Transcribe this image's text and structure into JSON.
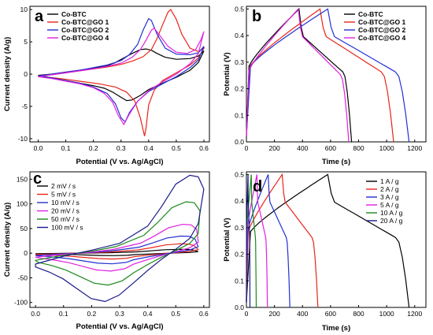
{
  "chart_data": [
    {
      "panel": "a",
      "type": "line",
      "xlabel": "Potential (V vs. Ag/AgCl)",
      "ylabel": "Current density (A/g)",
      "xlim": [
        -0.03,
        0.62
      ],
      "ylim": [
        -10.5,
        10.5
      ],
      "xticks": [
        "0.0",
        "0.1",
        "0.2",
        "0.3",
        "0.4",
        "0.5",
        "0.6"
      ],
      "yticks": [
        "-10",
        "-5",
        "0",
        "5",
        "10"
      ],
      "legend_position": "top-left",
      "series": [
        {
          "name": "Co-BTC",
          "color": "#000000",
          "upper": [
            [
              0,
              -0.2
            ],
            [
              0.05,
              0.0
            ],
            [
              0.1,
              0.3
            ],
            [
              0.15,
              0.6
            ],
            [
              0.2,
              0.9
            ],
            [
              0.25,
              1.3
            ],
            [
              0.28,
              1.8
            ],
            [
              0.31,
              2.5
            ],
            [
              0.34,
              3.2
            ],
            [
              0.37,
              3.8
            ],
            [
              0.39,
              3.9
            ],
            [
              0.41,
              3.7
            ],
            [
              0.43,
              3.2
            ],
            [
              0.46,
              2.6
            ],
            [
              0.5,
              2.3
            ],
            [
              0.55,
              2.4
            ],
            [
              0.58,
              2.8
            ],
            [
              0.6,
              3.6
            ]
          ],
          "lower": [
            [
              0.6,
              3.6
            ],
            [
              0.58,
              1.8
            ],
            [
              0.55,
              0.6
            ],
            [
              0.5,
              -0.5
            ],
            [
              0.45,
              -1.4
            ],
            [
              0.4,
              -2.4
            ],
            [
              0.37,
              -3.3
            ],
            [
              0.34,
              -4.0
            ],
            [
              0.32,
              -4.1
            ],
            [
              0.3,
              -3.6
            ],
            [
              0.27,
              -2.8
            ],
            [
              0.24,
              -2.2
            ],
            [
              0.2,
              -1.8
            ],
            [
              0.15,
              -1.4
            ],
            [
              0.1,
              -1.0
            ],
            [
              0.05,
              -0.6
            ],
            [
              0,
              -0.2
            ]
          ]
        },
        {
          "name": "Co-BTC@GO 1",
          "color": "#e8251a",
          "upper": [
            [
              0,
              -0.3
            ],
            [
              0.05,
              -0.1
            ],
            [
              0.1,
              0.2
            ],
            [
              0.15,
              0.5
            ],
            [
              0.2,
              0.8
            ],
            [
              0.25,
              1.1
            ],
            [
              0.3,
              1.5
            ],
            [
              0.34,
              2.0
            ],
            [
              0.38,
              2.7
            ],
            [
              0.41,
              3.8
            ],
            [
              0.43,
              5.5
            ],
            [
              0.45,
              7.6
            ],
            [
              0.47,
              9.6
            ],
            [
              0.48,
              10.0
            ],
            [
              0.5,
              8.5
            ],
            [
              0.52,
              6.2
            ],
            [
              0.55,
              4.0
            ],
            [
              0.58,
              3.5
            ],
            [
              0.6,
              4.0
            ]
          ],
          "lower": [
            [
              0.6,
              4.0
            ],
            [
              0.58,
              2.5
            ],
            [
              0.55,
              1.4
            ],
            [
              0.5,
              0.2
            ],
            [
              0.45,
              -1.0
            ],
            [
              0.42,
              -2.5
            ],
            [
              0.4,
              -4.8
            ],
            [
              0.39,
              -8.5
            ],
            [
              0.385,
              -9.6
            ],
            [
              0.37,
              -6.8
            ],
            [
              0.35,
              -4.2
            ],
            [
              0.32,
              -2.8
            ],
            [
              0.28,
              -2.0
            ],
            [
              0.22,
              -1.5
            ],
            [
              0.15,
              -1.1
            ],
            [
              0.08,
              -0.7
            ],
            [
              0,
              -0.3
            ]
          ]
        },
        {
          "name": "Co-BTC@GO 2",
          "color": "#2230d0",
          "upper": [
            [
              0,
              -0.3
            ],
            [
              0.05,
              0.0
            ],
            [
              0.1,
              0.3
            ],
            [
              0.15,
              0.6
            ],
            [
              0.2,
              1.0
            ],
            [
              0.25,
              1.4
            ],
            [
              0.3,
              2.1
            ],
            [
              0.33,
              3.0
            ],
            [
              0.36,
              4.6
            ],
            [
              0.38,
              6.8
            ],
            [
              0.4,
              8.6
            ],
            [
              0.41,
              8.3
            ],
            [
              0.43,
              6.2
            ],
            [
              0.46,
              4.0
            ],
            [
              0.5,
              3.1
            ],
            [
              0.55,
              3.0
            ],
            [
              0.58,
              3.3
            ],
            [
              0.6,
              4.3
            ]
          ],
          "lower": [
            [
              0.6,
              4.3
            ],
            [
              0.58,
              2.2
            ],
            [
              0.55,
              1.0
            ],
            [
              0.5,
              -0.4
            ],
            [
              0.45,
              -1.5
            ],
            [
              0.4,
              -2.7
            ],
            [
              0.36,
              -4.2
            ],
            [
              0.33,
              -6.0
            ],
            [
              0.315,
              -7.4
            ],
            [
              0.3,
              -6.8
            ],
            [
              0.28,
              -4.6
            ],
            [
              0.25,
              -3.0
            ],
            [
              0.2,
              -2.0
            ],
            [
              0.15,
              -1.4
            ],
            [
              0.1,
              -1.0
            ],
            [
              0.05,
              -0.6
            ],
            [
              0,
              -0.3
            ]
          ]
        },
        {
          "name": "Co-BTC@GO 4",
          "color": "#e020e0",
          "upper": [
            [
              0,
              -0.4
            ],
            [
              0.05,
              -0.1
            ],
            [
              0.1,
              0.2
            ],
            [
              0.15,
              0.5
            ],
            [
              0.2,
              0.8
            ],
            [
              0.25,
              1.2
            ],
            [
              0.3,
              1.7
            ],
            [
              0.34,
              2.6
            ],
            [
              0.37,
              3.8
            ],
            [
              0.39,
              5.2
            ],
            [
              0.41,
              6.8
            ],
            [
              0.42,
              7.1
            ],
            [
              0.44,
              6.0
            ],
            [
              0.47,
              4.3
            ],
            [
              0.5,
              3.4
            ],
            [
              0.54,
              3.2
            ],
            [
              0.57,
              3.8
            ],
            [
              0.59,
              5.4
            ],
            [
              0.6,
              6.6
            ]
          ],
          "lower": [
            [
              0.6,
              6.6
            ],
            [
              0.58,
              3.2
            ],
            [
              0.55,
              1.6
            ],
            [
              0.5,
              0.0
            ],
            [
              0.45,
              -1.2
            ],
            [
              0.4,
              -2.6
            ],
            [
              0.36,
              -4.2
            ],
            [
              0.33,
              -6.2
            ],
            [
              0.31,
              -7.8
            ],
            [
              0.29,
              -6.4
            ],
            [
              0.27,
              -4.4
            ],
            [
              0.24,
              -3.0
            ],
            [
              0.2,
              -2.1
            ],
            [
              0.15,
              -1.5
            ],
            [
              0.1,
              -1.1
            ],
            [
              0.05,
              -0.7
            ],
            [
              0,
              -0.4
            ]
          ]
        }
      ]
    },
    {
      "panel": "b",
      "type": "line",
      "xlabel": "Time (s)",
      "ylabel": "Potential (V)",
      "xlim": [
        0,
        1280
      ],
      "ylim": [
        0,
        0.51
      ],
      "xticks": [
        "0",
        "200",
        "400",
        "600",
        "800",
        "1000",
        "1200"
      ],
      "yticks": [
        "0.0",
        "0.1",
        "0.2",
        "0.3",
        "0.4",
        "0.5"
      ],
      "legend_position": "top-right",
      "series": [
        {
          "name": "Co-BTC",
          "color": "#000000",
          "peak": [
            375,
            0.5
          ],
          "end": 750,
          "charge_start": 0.24,
          "knee_v": 0.26
        },
        {
          "name": "Co-BTC@GO 1",
          "color": "#e8251a",
          "peak": [
            525,
            0.5
          ],
          "end": 1050,
          "charge_start": 0.24,
          "knee_v": 0.26
        },
        {
          "name": "Co-BTC@GO 2",
          "color": "#2230d0",
          "peak": [
            580,
            0.5
          ],
          "end": 1160,
          "charge_start": 0.24,
          "knee_v": 0.26
        },
        {
          "name": "Co-BTC@GO 4",
          "color": "#e020e0",
          "peak": [
            370,
            0.5
          ],
          "end": 730,
          "charge_start": 0.22,
          "knee_v": 0.25
        }
      ]
    },
    {
      "panel": "c",
      "type": "line",
      "xlabel": "Potential (V vs. Ag/AgCl)",
      "ylabel": "Current density (A/g)",
      "xlim": [
        -0.02,
        0.62
      ],
      "ylim": [
        -110,
        165
      ],
      "xticks": [
        "0.0",
        "0.1",
        "0.2",
        "0.3",
        "0.4",
        "0.5",
        "0.6"
      ],
      "yticks": [
        "-100",
        "-50",
        "0",
        "50",
        "100",
        "150"
      ],
      "legend_position": "top-left",
      "series": [
        {
          "name": "2 mV / s",
          "color": "#000000",
          "scale": 0.05
        },
        {
          "name": "5 mV / s",
          "color": "#e8251a",
          "scale": 0.12
        },
        {
          "name": "10 mV / s",
          "color": "#2230d0",
          "scale": 0.22
        },
        {
          "name": "20 mV / s",
          "color": "#e020e0",
          "scale": 0.37
        },
        {
          "name": "50 mV / s",
          "color": "#1a8a1a",
          "scale": 0.66
        },
        {
          "name": "100 mV / s",
          "color": "#1a1a8a",
          "scale": 1.0
        }
      ]
    },
    {
      "panel": "d",
      "type": "line",
      "xlabel": "Time (s)",
      "ylabel": "Potential (V)",
      "xlim": [
        0,
        1280
      ],
      "ylim": [
        0,
        0.51
      ],
      "xticks": [
        "0",
        "200",
        "400",
        "600",
        "800",
        "1000",
        "1200"
      ],
      "yticks": [
        "0.0",
        "0.1",
        "0.2",
        "0.3",
        "0.4",
        "0.5"
      ],
      "legend_position": "top-right",
      "series": [
        {
          "name": "1 A / g",
          "color": "#000000",
          "peak": 580,
          "end": 1160
        },
        {
          "name": "2 A / g",
          "color": "#e8251a",
          "peak": 255,
          "end": 510
        },
        {
          "name": "3 A / g",
          "color": "#2230d0",
          "peak": 155,
          "end": 310
        },
        {
          "name": "5 A / g",
          "color": "#e020e0",
          "peak": 75,
          "end": 150
        },
        {
          "name": "10 A / g",
          "color": "#1a8a1a",
          "peak": 35,
          "end": 70
        },
        {
          "name": "20 A / g",
          "color": "#1a1a8a",
          "peak": 12,
          "end": 25
        }
      ]
    }
  ]
}
